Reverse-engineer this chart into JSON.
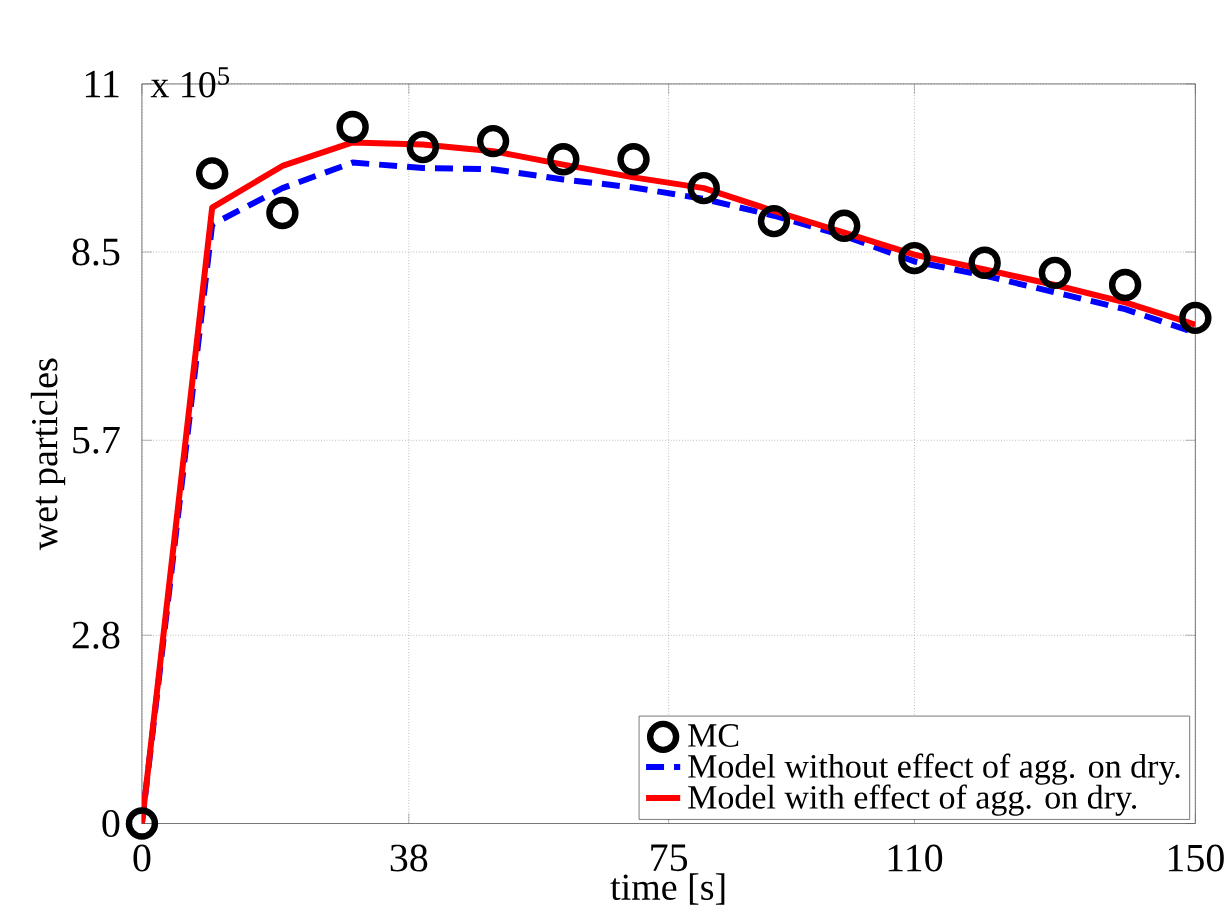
{
  "chart_data": {
    "type": "line",
    "xlabel": "time [s]",
    "ylabel": "wet particles",
    "annotations": [
      "x 10$^{5}$"
    ],
    "x": [
      0,
      10,
      20,
      30,
      40,
      50,
      60,
      70,
      80,
      90,
      100,
      110,
      120,
      130,
      140,
      150
    ],
    "series": [
      {
        "name": "MC",
        "type": "scatter",
        "marker": "circle",
        "color": "#000000",
        "values": [
          0,
          9.67,
          9.08,
          10.36,
          10.06,
          10.15,
          9.88,
          9.88,
          9.45,
          8.96,
          8.89,
          8.41,
          8.34,
          8.19,
          8.01,
          7.52
        ]
      },
      {
        "name": "Model without effect of agg. on dry.",
        "line_style": "dashed",
        "color": "#0000ff",
        "values": [
          0,
          8.91,
          9.45,
          9.83,
          9.75,
          9.73,
          9.58,
          9.46,
          9.29,
          9.04,
          8.74,
          8.36,
          8.15,
          7.9,
          7.65,
          7.3
        ]
      },
      {
        "name": "Model with effect of agg. on dry.",
        "line_style": "solid",
        "color": "#ff0000",
        "values": [
          0,
          9.16,
          9.78,
          10.13,
          10.1,
          10.0,
          9.8,
          9.61,
          9.45,
          9.11,
          8.79,
          8.46,
          8.24,
          8.01,
          7.75,
          7.42
        ]
      }
    ],
    "xlim": [
      0,
      150
    ],
    "xticks": [
      0,
      38,
      75,
      110,
      150
    ],
    "ylim": [
      0,
      11
    ],
    "yticks": [
      0,
      2.8,
      5.7,
      8.5,
      11
    ],
    "grid": true,
    "legend": "bottom right"
  }
}
